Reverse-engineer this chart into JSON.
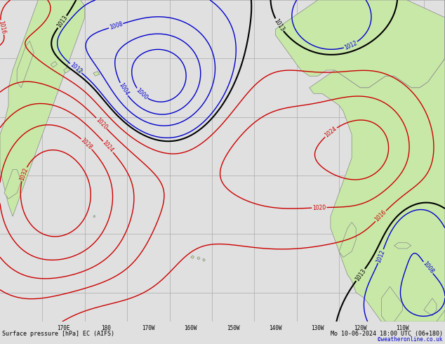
{
  "title_left": "Surface pressure [hPa] EC (AIFS)",
  "title_right": "Mo 10-06-2024 18:00 UTC (06+180)",
  "copyright": "©weatheronline.co.uk",
  "fig_width": 6.34,
  "fig_height": 4.9,
  "dpi": 100,
  "bg_color": "#e0e0e0",
  "land_color": "#c8e8a8",
  "ocean_color": "#e0e0e0",
  "land_edge_color": "#888888",
  "grid_color": "#aaaaaa",
  "contour_color_black": "#000000",
  "contour_color_blue": "#0000cc",
  "contour_color_red": "#cc0000",
  "bottom_bar_color": "#d0d0d0",
  "bottom_text_color": "#000000",
  "copyright_color": "#0000cc",
  "xlim": [
    155,
    260
  ],
  "ylim": [
    10,
    65
  ],
  "grid_xticks": [
    165,
    175,
    185,
    195,
    205,
    215,
    225,
    235,
    245,
    255
  ],
  "grid_yticks": [
    15,
    25,
    35,
    45,
    55,
    65
  ],
  "xtick_vals": [
    170,
    180,
    190,
    200,
    210,
    220,
    230,
    240,
    250
  ],
  "xtick_labels": [
    "170E",
    "180",
    "170W",
    "160W",
    "150W",
    "140W",
    "130W",
    "120W",
    "110W"
  ]
}
